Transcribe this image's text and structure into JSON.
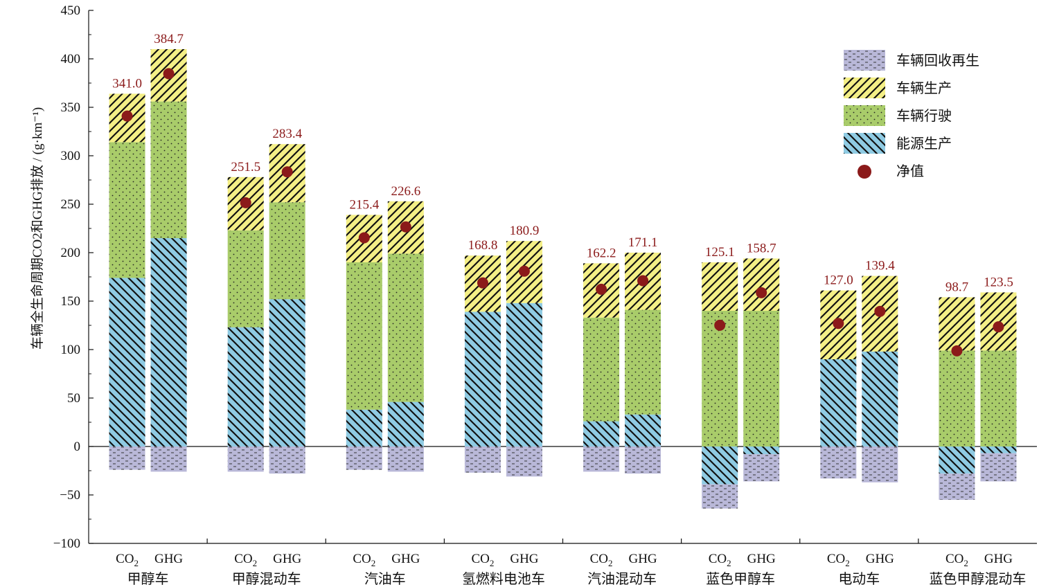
{
  "chart_data": {
    "type": "bar",
    "stacked": true,
    "ylabel": "车辆全生命周期CO2和GHG排放 / (g·km⁻¹)",
    "ylim": [
      -100,
      450
    ],
    "yticks": [
      -100,
      -50,
      0,
      50,
      100,
      150,
      200,
      250,
      300,
      350,
      400,
      450
    ],
    "categories": [
      "甲醇车",
      "甲醇混动车",
      "汽油车",
      "氢燃料电池车",
      "汽油混动车",
      "蓝色甲醇车",
      "电动车",
      "蓝色甲醇混动车"
    ],
    "subcategories": [
      "CO2",
      "GHG"
    ],
    "legend": {
      "position": "top-right",
      "entries": [
        {
          "name": "车辆回收再生",
          "key": "recycle"
        },
        {
          "name": "车辆生产",
          "key": "production"
        },
        {
          "name": "车辆行驶",
          "key": "driving"
        },
        {
          "name": "能源生产",
          "key": "energy"
        },
        {
          "name": "净值",
          "key": "net"
        }
      ]
    },
    "colors": {
      "energy": "#8fcbe3",
      "driving": "#a9cc6a",
      "production": "#f4ef86",
      "recycle": "#b9b8d8",
      "net": "#8b1a1a",
      "hatch": "#111111"
    },
    "series": [
      {
        "name": "车辆回收再生",
        "key": "recycle",
        "values": [
          [
            -24,
            -26
          ],
          [
            -26,
            -28
          ],
          [
            -24,
            -26
          ],
          [
            -27,
            -31
          ],
          [
            -26,
            -28
          ],
          [
            -25,
            -28
          ],
          [
            -33,
            -37
          ],
          [
            -27,
            -29
          ]
        ]
      },
      {
        "name": "能源生产",
        "key": "energy",
        "values": [
          [
            174,
            215
          ],
          [
            123,
            152
          ],
          [
            38,
            46
          ],
          [
            139,
            148
          ],
          [
            26,
            33
          ],
          [
            -39,
            -8
          ],
          [
            90,
            98
          ],
          [
            -28,
            -7
          ]
        ]
      },
      {
        "name": "车辆行驶",
        "key": "driving",
        "values": [
          [
            140,
            141
          ],
          [
            100,
            100
          ],
          [
            152,
            153
          ],
          [
            0,
            0
          ],
          [
            107,
            108
          ],
          [
            140,
            140
          ],
          [
            0,
            0
          ],
          [
            99,
            99
          ]
        ]
      },
      {
        "name": "车辆生产",
        "key": "production",
        "values": [
          [
            50,
            54
          ],
          [
            55,
            60
          ],
          [
            49,
            54
          ],
          [
            58,
            64
          ],
          [
            56,
            59
          ],
          [
            50,
            54
          ],
          [
            71,
            78
          ],
          [
            55,
            60
          ]
        ]
      }
    ],
    "net_values": [
      [
        341.0,
        384.7
      ],
      [
        251.5,
        283.4
      ],
      [
        215.4,
        226.6
      ],
      [
        168.8,
        180.9
      ],
      [
        162.2,
        171.1
      ],
      [
        125.1,
        158.7
      ],
      [
        127.0,
        139.4
      ],
      [
        98.7,
        123.5
      ]
    ],
    "net_labels": [
      [
        "341.0",
        "384.7"
      ],
      [
        "251.5",
        "283.4"
      ],
      [
        "215.4",
        "226.6"
      ],
      [
        "168.8",
        "180.9"
      ],
      [
        "162.2",
        "171.1"
      ],
      [
        "125.1",
        "158.7"
      ],
      [
        "127.0",
        "139.4"
      ],
      [
        "98.7",
        "123.5"
      ]
    ]
  }
}
